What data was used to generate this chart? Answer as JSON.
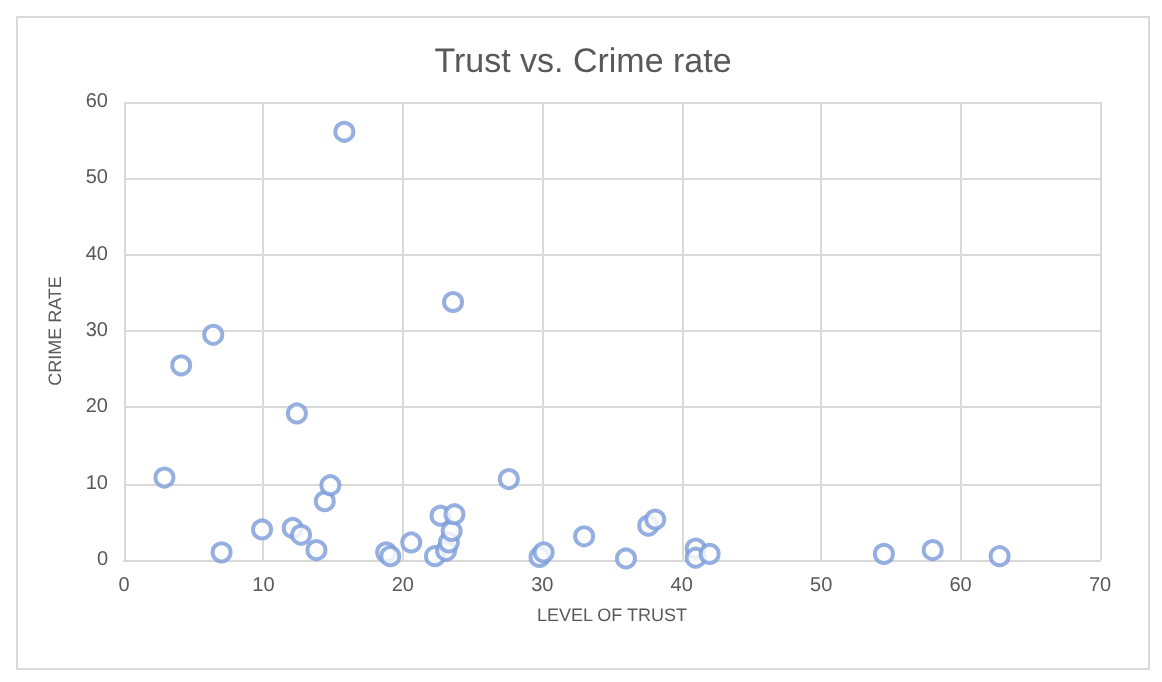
{
  "chart_data": {
    "type": "scatter",
    "title": "Trust vs. Crime rate",
    "xlabel": "LEVEL OF TRUST",
    "ylabel": "CRIME RATE",
    "series": [
      {
        "color": "#7b9bd9",
        "x": [
          2.9,
          4.1,
          6.4,
          7,
          9.9,
          12.1,
          12.4,
          12.7,
          13.8,
          14.4,
          14.8,
          15.8,
          18.8,
          19.1,
          20.6,
          22.3,
          22.7,
          23.1,
          23.3,
          23.5,
          23.6,
          23.7,
          27.6,
          29.8,
          30.1,
          33,
          36,
          37.6,
          38.1,
          41,
          41,
          42,
          54.5,
          58,
          62.8
        ],
        "values": [
          10.8,
          25.5,
          29.5,
          1,
          4,
          4.2,
          19.2,
          3.3,
          1.3,
          7.7,
          9.8,
          56.1,
          1,
          0.5,
          2.3,
          0.5,
          5.8,
          1.2,
          2.3,
          3.8,
          33.8,
          6,
          10.6,
          0.4,
          1,
          3.1,
          0.2,
          4.5,
          5.3,
          1.5,
          0.3,
          0.8,
          0.8,
          1.3,
          0.5
        ]
      }
    ],
    "xlim": [
      0,
      70
    ],
    "xticks": [
      0,
      10,
      20,
      30,
      40,
      50,
      60,
      70
    ],
    "ylim": [
      0,
      60
    ],
    "yticks": [
      0,
      10,
      20,
      30,
      40,
      50,
      60
    ],
    "grid": true,
    "marker": "circle"
  }
}
